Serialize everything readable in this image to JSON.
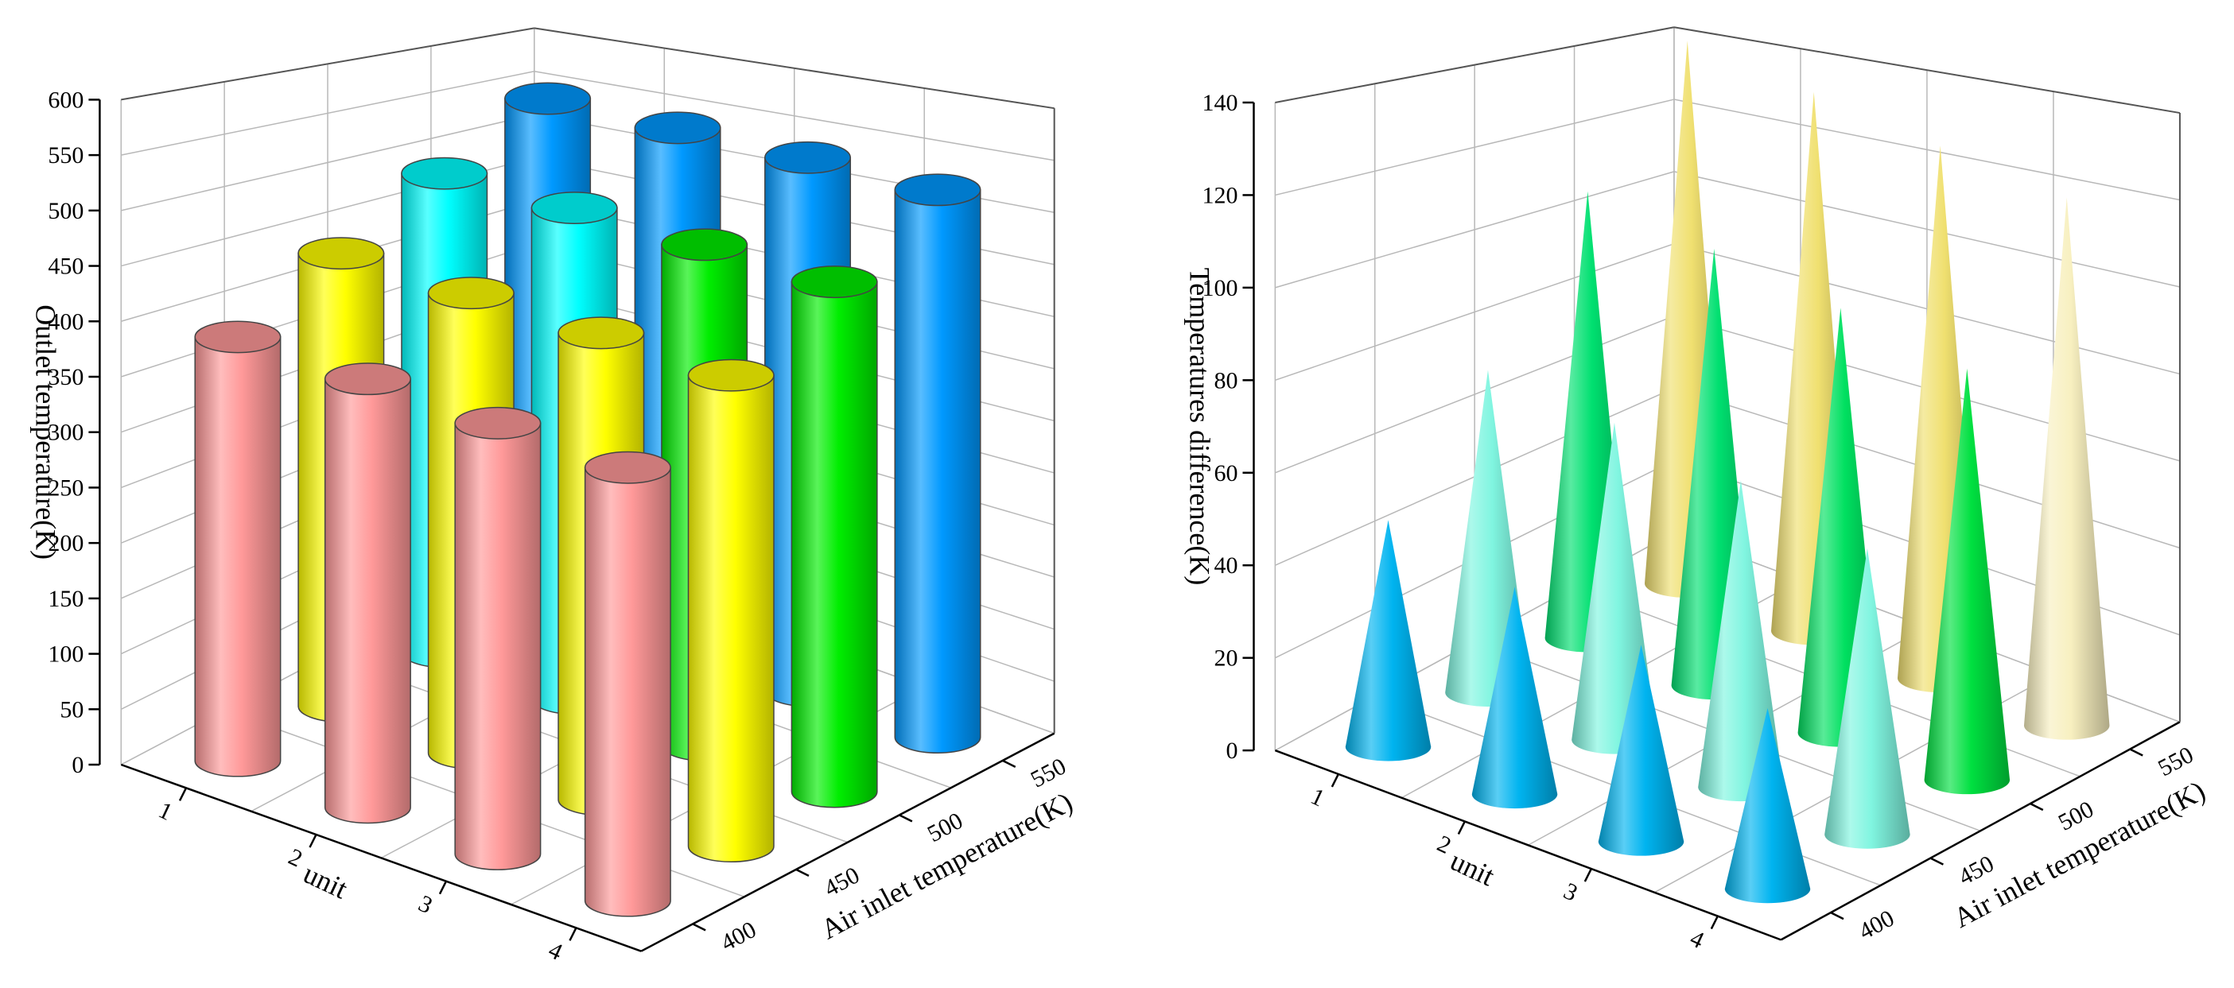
{
  "chart_data": [
    {
      "type": "bar3d",
      "xlabel": "unit",
      "ylabel": "Air inlet temperature(K)",
      "zlabel": "Outlet temperature(K)",
      "x_categories": [
        "1",
        "2",
        "3",
        "4"
      ],
      "y_categories": [
        "400",
        "450",
        "500",
        "550"
      ],
      "zlim": [
        0,
        600
      ],
      "zticks": [
        0,
        50,
        100,
        150,
        200,
        250,
        300,
        350,
        400,
        450,
        500,
        550,
        600
      ],
      "grid": true,
      "series": [
        {
          "colors": [
            "#ff9999",
            "#ff9999",
            "#ff9999",
            "#ff9999"
          ],
          "values": [
            390,
            388,
            384,
            380
          ]
        },
        {
          "colors": [
            "#ffff00",
            "#ffff00",
            "#ffff00",
            "#ffff00"
          ],
          "values": [
            440,
            436,
            432,
            426
          ]
        },
        {
          "colors": [
            "#00ffff",
            "#00ffff",
            "#00ee00",
            "#00ee00"
          ],
          "values": [
            492,
            488,
            482,
            476
          ]
        },
        {
          "colors": [
            "#0099ff",
            "#0099ff",
            "#0099ff",
            "#0099ff"
          ],
          "values": [
            545,
            540,
            535,
            528
          ]
        }
      ]
    },
    {
      "type": "cone3d",
      "xlabel": "unit",
      "ylabel": "Air inlet temperature(K)",
      "zlabel": "Temperatures difference(K)",
      "x_categories": [
        "1",
        "2",
        "3",
        "4"
      ],
      "y_categories": [
        "400",
        "450",
        "500",
        "550"
      ],
      "zlim": [
        0,
        140
      ],
      "zticks": [
        0,
        20,
        40,
        60,
        80,
        100,
        120,
        140
      ],
      "grid": true,
      "series": [
        {
          "colors": [
            "#00b4f0",
            "#00b4f0",
            "#00b4f0",
            "#00b4f0"
          ],
          "values": [
            50,
            45,
            42,
            38
          ]
        },
        {
          "colors": [
            "#80f5e0",
            "#80f5e0",
            "#80f5e0",
            "#80f5e0"
          ],
          "values": [
            75,
            72,
            68,
            62
          ]
        },
        {
          "colors": [
            "#00e070",
            "#00e070",
            "#00e060",
            "#00e040"
          ],
          "values": [
            110,
            104,
            98,
            92
          ]
        },
        {
          "colors": [
            "#f0e070",
            "#f0e070",
            "#f0e070",
            "#f8f0c0"
          ],
          "values": [
            142,
            135,
            128,
            122
          ]
        }
      ]
    }
  ]
}
